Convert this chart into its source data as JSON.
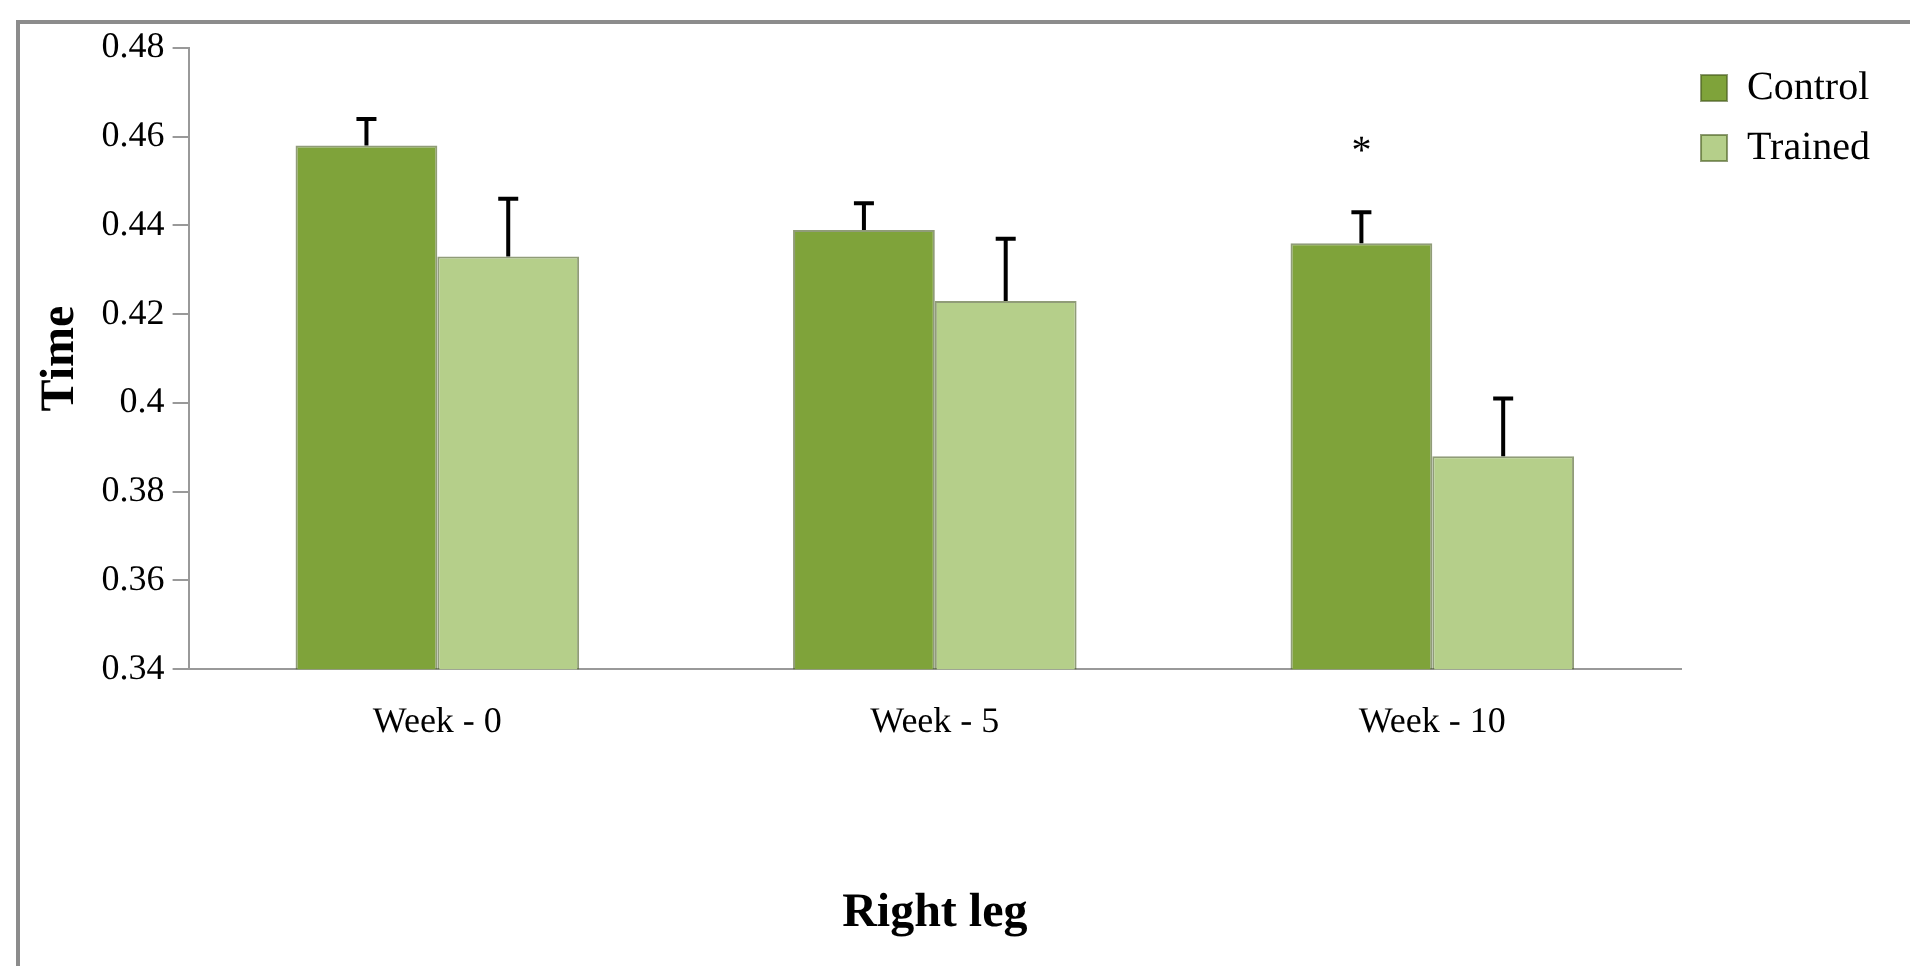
{
  "chart_data": {
    "type": "bar",
    "xlabel": "Right leg",
    "ylabel": "Time",
    "categories": [
      "Week - 0",
      "Week - 5",
      "Week - 10"
    ],
    "series": [
      {
        "name": "Control",
        "color": "#7fa33a",
        "values": [
          0.458,
          0.439,
          0.436
        ],
        "errors": [
          [
            0.458,
            0.464
          ],
          [
            0.439,
            0.445
          ],
          [
            0.436,
            0.443
          ]
        ]
      },
      {
        "name": "Trained",
        "color": "#b5cf8a",
        "values": [
          0.433,
          0.423,
          0.388
        ],
        "errors": [
          [
            0.433,
            0.446
          ],
          [
            0.423,
            0.437
          ],
          [
            0.388,
            0.401
          ]
        ]
      }
    ],
    "ylim": [
      0.34,
      0.48
    ],
    "yticks": [
      0.34,
      0.36,
      0.38,
      {
        "value": 0.4,
        "label": "0.4"
      },
      0.42,
      0.44,
      0.46,
      0.48
    ],
    "annotations": [
      "*"
    ],
    "grid": false,
    "legend": "top right"
  }
}
